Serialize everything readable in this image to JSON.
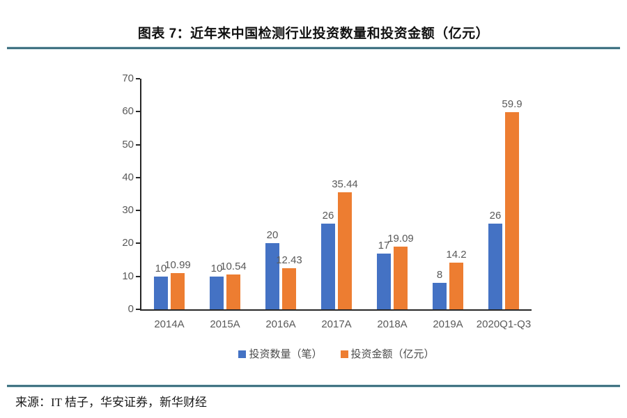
{
  "header": {
    "title": "图表 7：近年来中国检测行业投资数量和投资金额（亿元）"
  },
  "footer": {
    "source": "来源：IT 桔子，华安证券，新华财经"
  },
  "colors": {
    "series1": "#4472C4",
    "series2": "#ED7D31",
    "axis": "#262626",
    "tick_label": "#595959",
    "divider": "#2B6171"
  },
  "chart_data": {
    "type": "bar",
    "title": "图表 7：近年来中国检测行业投资数量和投资金额（亿元）",
    "categories": [
      "2014A",
      "2015A",
      "2016A",
      "2017A",
      "2018A",
      "2019A",
      "2020Q1-Q3"
    ],
    "series": [
      {
        "name": "投资数量（笔）",
        "color": "#4472C4",
        "values": [
          10,
          10,
          20,
          26,
          17,
          8,
          26
        ],
        "labels": [
          "10",
          "10",
          "20",
          "26",
          "17",
          "8",
          "26"
        ]
      },
      {
        "name": "投资金额（亿元）",
        "color": "#ED7D31",
        "values": [
          10.99,
          10.54,
          12.43,
          35.44,
          19.09,
          14.2,
          59.9
        ],
        "labels": [
          "10.99",
          "10.54",
          "12.43",
          "35.44",
          "19.09",
          "14.2",
          "59.9"
        ]
      }
    ],
    "ylim": [
      0,
      70
    ],
    "yticks": [
      0,
      10,
      20,
      30,
      40,
      50,
      60,
      70
    ],
    "grid": false,
    "legend_position": "bottom",
    "data_labels": true
  }
}
